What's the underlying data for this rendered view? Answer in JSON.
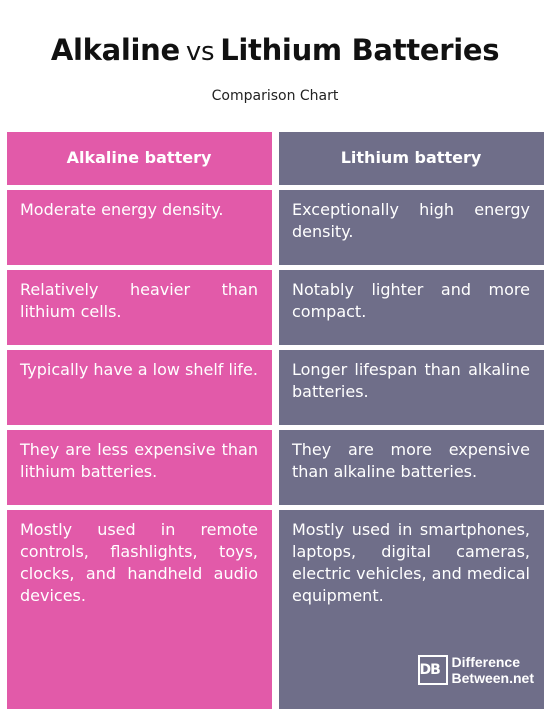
{
  "title": {
    "part1": "Alkaline",
    "vs": "vs",
    "part2": "Lithium Batteries"
  },
  "subtitle": "Comparison Chart",
  "headers": {
    "left": "Alkaline battery",
    "right": "Lithium battery"
  },
  "rows": [
    {
      "left": "Moderate energy density.",
      "right": "Exceptionally high energy density."
    },
    {
      "left": "Relatively heavier than lithium cells.",
      "right": "Notably lighter and more compact."
    },
    {
      "left": "Typically have a low shelf life.",
      "right": "Longer lifespan than alkaline batteries."
    },
    {
      "left": "They are less expensive than lithium batteries.",
      "right": "They are more expensive than alkaline batteries."
    },
    {
      "left": "Mostly used in remote controls, flashlights, toys, clocks, and handheld audio devices.",
      "right": "Mostly used in smartphones, laptops, digital cameras, electric vehicles, and medical equipment."
    }
  ],
  "logo": {
    "mark": "DB",
    "line1": "Difference",
    "line2": "Between.net"
  },
  "colors": {
    "alkaline": "#e25aa9",
    "lithium": "#6f6e89"
  }
}
